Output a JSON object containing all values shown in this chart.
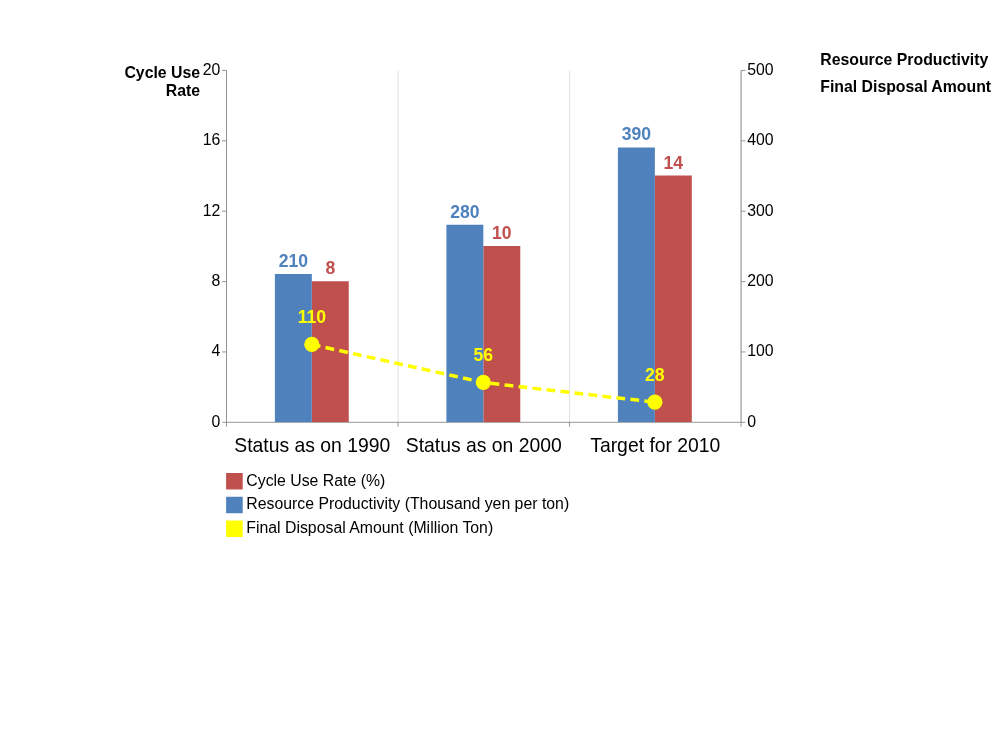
{
  "chart_data": {
    "type": "bar",
    "categories": [
      "Status as on 1990",
      "Status as on 2000",
      "Target for 2010"
    ],
    "ylabel": "Cycle Use Rate",
    "y2label": "Resource Productivity",
    "annotations": [
      "Final Disposal Amount"
    ],
    "ylim": [
      0,
      20
    ],
    "yticks": [
      0,
      4,
      8,
      12,
      16,
      20
    ],
    "y2lim": [
      0,
      500
    ],
    "y2ticks": [
      0,
      100,
      200,
      300,
      400,
      500
    ],
    "series": [
      {
        "name": "Cycle Use Rate (%)",
        "color": "#c0504d",
        "values": [
          8,
          10,
          14
        ]
      },
      {
        "name": "Resource Productivity (Thousand  yen per ton)",
        "color": "#4f81bd",
        "values": [
          210,
          280,
          390
        ],
        "axis": "y2"
      },
      {
        "name": "Final Disposal Amount (Million Ton)",
        "color": "#ffff00",
        "values": [
          110,
          56,
          28
        ],
        "axis": "y2",
        "type": "line",
        "line_style": "dashed",
        "marker": "circle"
      }
    ],
    "data_labels": true,
    "grid": "x",
    "legend": "bottom"
  }
}
